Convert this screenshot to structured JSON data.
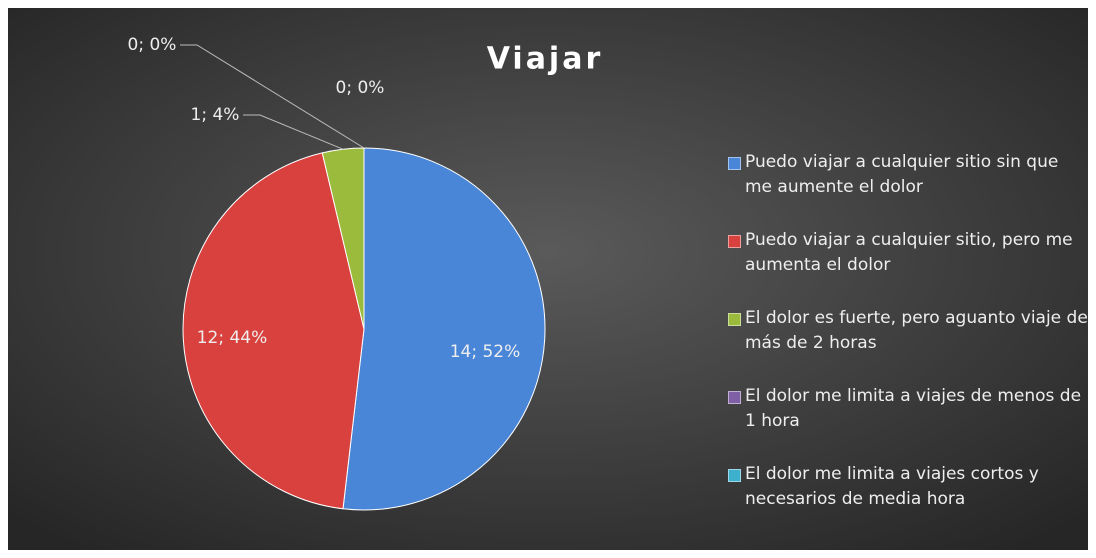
{
  "chart_data": {
    "type": "pie",
    "title": "Viajar",
    "categories": [
      "Puedo viajar a cualquier sitio sin que me aumente el dolor",
      "Puedo viajar a cualquier sitio, pero me aumenta el dolor",
      "El dolor es fuerte, pero aguanto viaje de más de 2 horas",
      "El dolor me limita a viajes de menos de 1 hora",
      "El dolor me limita a viajes cortos y necesarios de media hora"
    ],
    "values": [
      14,
      12,
      1,
      0,
      0
    ],
    "value_labels": [
      "14; 52%",
      "12; 44%",
      "1; 4%",
      "0; 0%",
      "0; 0%"
    ],
    "colors": [
      "#4a86d8",
      "#d9413e",
      "#9bbb3c",
      "#7f5fa6",
      "#3cb0cc"
    ],
    "legend": "right"
  }
}
